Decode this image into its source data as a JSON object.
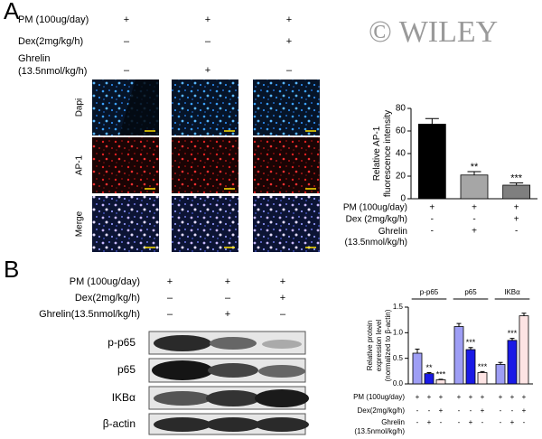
{
  "watermark": "© WILEY",
  "panel_a": {
    "label": "A",
    "conditions": [
      {
        "label": "PM (100ug/day)",
        "marks": [
          "+",
          "+",
          "+"
        ]
      },
      {
        "label": "Dex(2mg/kg/h)",
        "marks": [
          "–",
          "–",
          "+"
        ]
      },
      {
        "label": "Ghrelin (13.5nmol/kg/h)",
        "marks": [
          "–",
          "+",
          "–"
        ]
      }
    ],
    "rows": [
      "Dapi",
      "AP-1",
      "Merge"
    ]
  },
  "panel_b": {
    "label": "B",
    "conditions": [
      {
        "label": "PM (100ug/day)",
        "marks": [
          "+",
          "+",
          "+"
        ]
      },
      {
        "label": "Dex(2mg/kg/h)",
        "marks": [
          "–",
          "–",
          "+"
        ]
      },
      {
        "label": "Ghrelin(13.5nmol/kg/h)",
        "marks": [
          "–",
          "+",
          "–"
        ]
      }
    ],
    "bands": [
      "p-p65",
      "p65",
      "IKBα",
      "β-actin"
    ]
  },
  "chart_data": [
    {
      "type": "bar",
      "y_label": "Relative AP-1 fluorescence intensity",
      "categories": [
        null,
        null,
        null
      ],
      "values": [
        66,
        21,
        12
      ],
      "errors": [
        5,
        3,
        2
      ],
      "colors": [
        "#000000",
        "#a6a6a6",
        "#7f7f7f"
      ],
      "annotations": [
        null,
        "**",
        "***"
      ],
      "ylim": [
        0,
        80
      ],
      "yticks": [
        0,
        20,
        40,
        60,
        80
      ],
      "conditions": [
        {
          "label": "PM (100ug/day)",
          "marks": [
            "+",
            "+",
            "+"
          ]
        },
        {
          "label": "Dex (2mg/kg/h)",
          "marks": [
            "-",
            "-",
            "+"
          ]
        },
        {
          "label": "Ghrelin (13.5nmol/kg/h)",
          "marks": [
            "-",
            "+",
            "-"
          ]
        }
      ]
    },
    {
      "type": "bar",
      "y_label": "Relative protein expression level (normalized to β-actin)",
      "categories": [
        "p-p65",
        "p65",
        "IKBα"
      ],
      "series": [
        {
          "color": "#9e9ef5",
          "values": [
            0.6,
            1.12,
            0.38
          ],
          "errors": [
            0.08,
            0.06,
            0.04
          ]
        },
        {
          "color": "#1a1ae6",
          "values": [
            0.2,
            0.67,
            0.85
          ],
          "errors": [
            0.02,
            0.04,
            0.04
          ],
          "annotations": [
            "**",
            "***",
            "***"
          ]
        },
        {
          "color": "#fde4e4",
          "values": [
            0.08,
            0.22,
            1.33
          ],
          "errors": [
            0.01,
            0.02,
            0.05
          ],
          "annotations": [
            "***",
            "***",
            null
          ]
        }
      ],
      "ylim": [
        0,
        1.5
      ],
      "yticks": [
        {
          "value": 0,
          "label": "0.0"
        },
        0.5,
        {
          "value": 1,
          "label": "1.0"
        },
        1.5
      ],
      "conditions": [
        {
          "label": "PM (100ug/day)",
          "marks": [
            "+",
            "+",
            "+",
            "+",
            "+",
            "+",
            "+",
            "+",
            "+"
          ]
        },
        {
          "label": "Dex(2mg/kg/h)",
          "marks": [
            "-",
            "-",
            "+",
            "-",
            "-",
            "+",
            "-",
            "-",
            "+"
          ]
        },
        {
          "label": "Ghrelin (13.5nmol/kg/h)",
          "marks": [
            "-",
            "+",
            "-",
            "-",
            "+",
            "-",
            "-",
            "+",
            "-"
          ]
        }
      ]
    }
  ]
}
